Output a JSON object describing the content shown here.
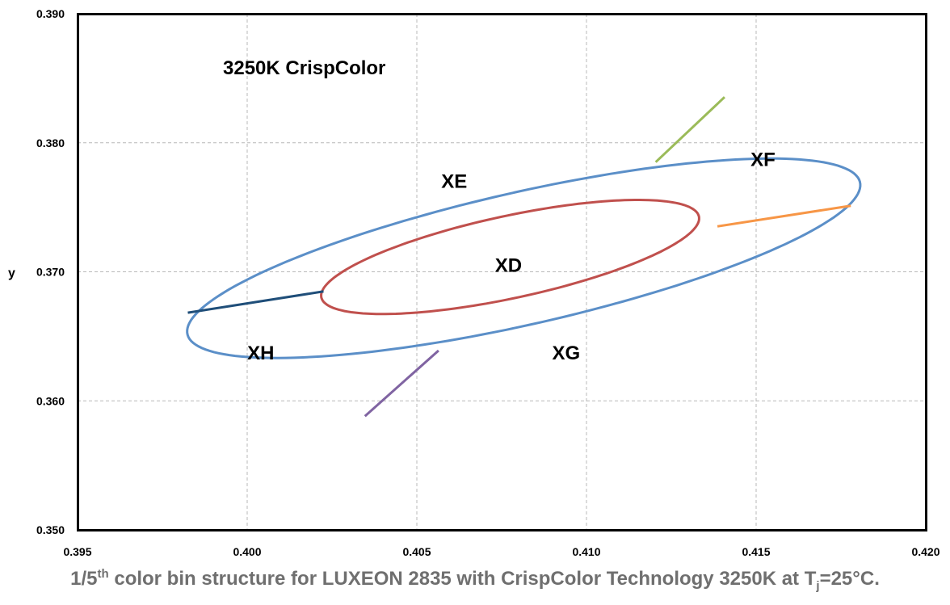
{
  "chart_data": {
    "type": "scatter",
    "title": "3250K CrispColor",
    "xlabel": "",
    "ylabel": "y",
    "xlim": [
      0.395,
      0.42
    ],
    "ylim": [
      0.35,
      0.39
    ],
    "x_ticks": [
      "0.395",
      "0.400",
      "0.405",
      "0.410",
      "0.415",
      "0.420"
    ],
    "y_ticks": [
      "0.350",
      "0.360",
      "0.370",
      "0.380",
      "0.390"
    ],
    "grid": true,
    "regions": [
      {
        "name": "XD",
        "label_at": [
          0.4077,
          0.3705
        ]
      },
      {
        "name": "XE",
        "label_at": [
          0.4061,
          0.377
        ]
      },
      {
        "name": "XF",
        "label_at": [
          0.4152,
          0.3787
        ]
      },
      {
        "name": "XG",
        "label_at": [
          0.4094,
          0.3637
        ]
      },
      {
        "name": "XH",
        "label_at": [
          0.4004,
          0.3637
        ]
      }
    ],
    "ellipses": [
      {
        "id": "outer",
        "color": "#5b8fc8",
        "center": [
          0.40815,
          0.37105
        ],
        "semi_axes": [
          0.01177,
          0.00443
        ],
        "angle_deg": 35.5
      },
      {
        "id": "inner",
        "color": "#c0504d",
        "center": [
          0.40775,
          0.37115
        ],
        "semi_axes": [
          0.00655,
          0.00277
        ],
        "angle_deg": 35.5
      }
    ],
    "dividers": [
      {
        "color": "#9bbb59",
        "from": [
          0.41204,
          0.3785
        ],
        "to": [
          0.41407,
          0.38354
        ]
      },
      {
        "color": "#f79646",
        "from": [
          0.41386,
          0.37352
        ],
        "to": [
          0.41779,
          0.37512
        ]
      },
      {
        "color": "#8064a2",
        "from": [
          0.40564,
          0.3639
        ],
        "to": [
          0.40347,
          0.35881
        ]
      },
      {
        "color": "#1f4e79",
        "from": [
          0.40225,
          0.36848
        ],
        "to": [
          0.39825,
          0.36683
        ]
      }
    ]
  },
  "caption": {
    "part1": "1/5",
    "sup": "th",
    "part2": " color bin structure for LUXEON 2835 with CrispColor Technology 3250K at T",
    "sub": "j",
    "part3": "=25°C."
  }
}
